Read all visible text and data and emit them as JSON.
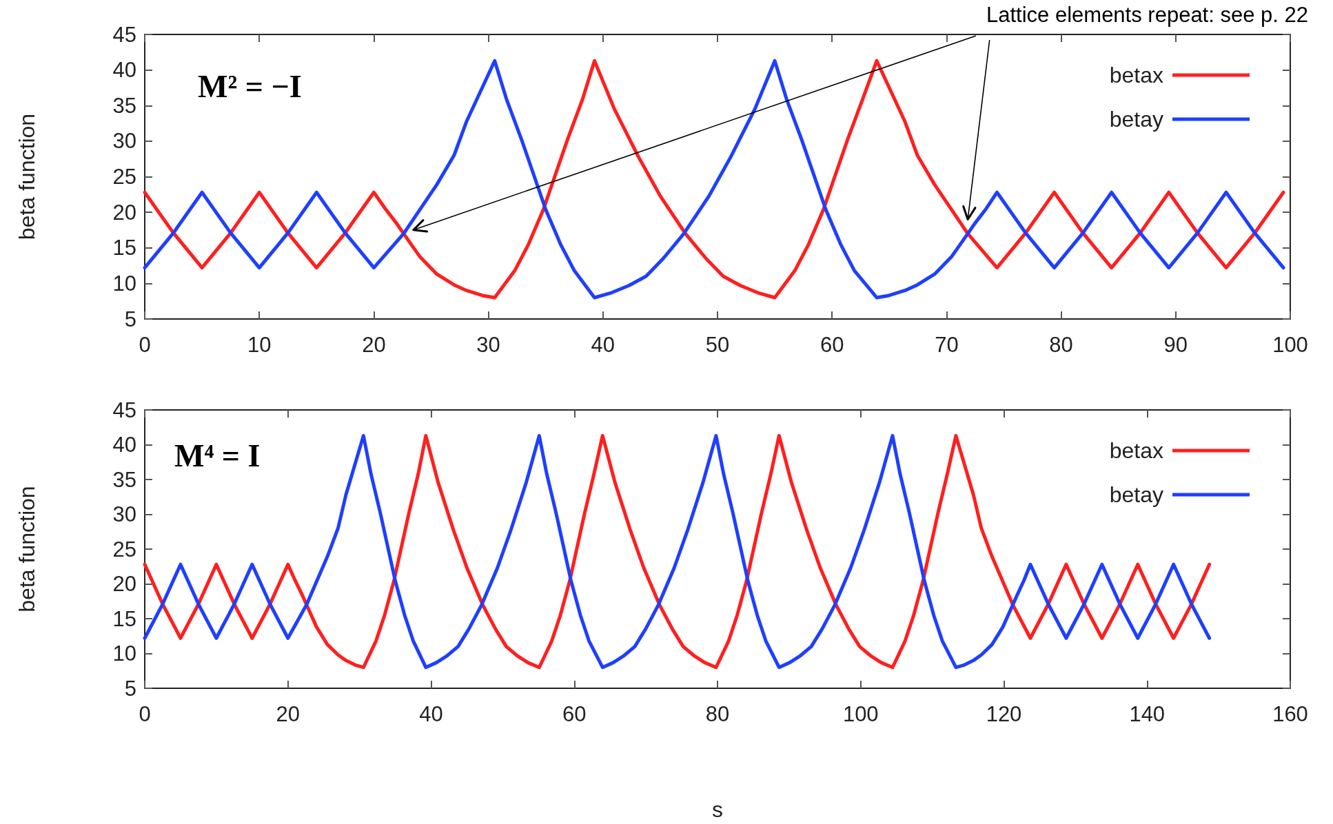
{
  "chart_data": [
    {
      "type": "line",
      "ylabel": "beta function",
      "xlim": [
        0,
        100
      ],
      "ylim": [
        5,
        45
      ],
      "xticks": [
        0,
        10,
        20,
        30,
        40,
        50,
        60,
        70,
        80,
        90,
        100
      ],
      "yticks": [
        5,
        10,
        15,
        20,
        25,
        30,
        35,
        40,
        45
      ],
      "legend": "top right",
      "annotations": [
        "M² = −I",
        "Lattice elements repeat: see p. 22"
      ],
      "series": [
        {
          "name": "betax",
          "color": "#ff1f1f",
          "x": [
            0,
            2.5,
            5,
            7.5,
            10,
            12.5,
            15,
            17.5,
            20,
            21,
            22,
            22.6,
            24,
            25.5,
            27,
            28.1,
            29.5,
            30.55,
            32.3,
            33.5,
            34.8,
            36.9,
            38.2,
            39.26,
            41,
            43.1,
            45,
            47.2,
            49,
            50.5,
            52,
            53.5,
            55,
            56.75,
            57.95,
            59.25,
            61.35,
            62.65,
            63.9,
            66.35,
            67.45,
            68.95,
            71.85,
            74.4,
            76.9,
            79.4,
            81.9,
            84.4,
            86.9,
            89.4,
            91.9,
            94.4,
            96.9,
            99.4
          ],
          "values": [
            22.8,
            17.1,
            12.2,
            17.1,
            22.8,
            17.1,
            12.2,
            17.1,
            22.8,
            20.5,
            18.4,
            17.0,
            13.8,
            11.3,
            9.8,
            9.0,
            8.3,
            8.0,
            11.8,
            15.5,
            20.4,
            30.2,
            35.8,
            41.3,
            34.5,
            27.8,
            22.3,
            17.0,
            13.5,
            11.0,
            9.7,
            8.7,
            8.0,
            11.8,
            15.5,
            20.4,
            30.2,
            35.8,
            41.3,
            32.8,
            28,
            23.9,
            17.0,
            12.2,
            17.1,
            22.8,
            17.1,
            12.2,
            17.1,
            22.8,
            17.1,
            12.2,
            17.1,
            22.8
          ]
        },
        {
          "name": "betay",
          "color": "#1f3fff",
          "x": [
            0,
            2.5,
            5,
            7.5,
            10,
            12.5,
            15,
            17.5,
            20,
            22.6,
            25.5,
            27,
            28.1,
            30.55,
            31.6,
            32.9,
            35.0,
            36.3,
            37.5,
            39.26,
            40.76,
            42.26,
            43.76,
            45.26,
            47.06,
            49.26,
            51.16,
            53.26,
            55.0,
            56.05,
            57.35,
            59.45,
            60.75,
            61.95,
            63.9,
            64.95,
            66.35,
            67.45,
            68.95,
            70.45,
            71.85,
            72.45,
            73.45,
            74.4,
            76.9,
            79.4,
            81.9,
            84.4,
            86.9,
            89.4,
            91.9,
            94.4,
            96.9,
            99.4
          ],
          "values": [
            12.2,
            17.1,
            22.8,
            17.1,
            12.2,
            17.1,
            22.8,
            17.1,
            12.2,
            17.0,
            23.9,
            28,
            32.8,
            41.3,
            35.8,
            30.2,
            20.4,
            15.5,
            11.8,
            8.0,
            8.7,
            9.7,
            11.0,
            13.5,
            17.0,
            22.3,
            27.8,
            34.5,
            41.3,
            35.8,
            30.2,
            20.4,
            15.5,
            11.8,
            8.0,
            8.3,
            9.0,
            9.8,
            11.3,
            13.8,
            17.0,
            18.4,
            20.5,
            22.8,
            17.1,
            12.2,
            17.1,
            22.8,
            17.1,
            12.2,
            17.1,
            22.8,
            17.1,
            12.2
          ]
        }
      ]
    },
    {
      "type": "line",
      "xlabel": "s",
      "ylabel": "beta function",
      "xlim": [
        0,
        160
      ],
      "ylim": [
        5,
        45
      ],
      "xticks": [
        0,
        20,
        40,
        60,
        80,
        100,
        120,
        140,
        160
      ],
      "yticks": [
        5,
        10,
        15,
        20,
        25,
        30,
        35,
        40,
        45
      ],
      "legend": "top right",
      "annotations": [
        "M⁴ = I"
      ],
      "series": [
        {
          "name": "betax",
          "color": "#ff1f1f",
          "x": [
            0,
            2.5,
            5,
            7.5,
            10,
            12.5,
            15,
            17.5,
            20,
            21,
            22,
            22.6,
            24,
            25.5,
            27,
            28.1,
            29.5,
            30.55,
            32.3,
            33.5,
            34.8,
            36.9,
            38.2,
            39.26,
            41,
            43.1,
            45,
            47.2,
            49,
            50.5,
            52,
            53.5,
            55.1,
            56.85,
            58.05,
            59.35,
            61.45,
            62.75,
            63.95,
            65.7,
            67.8,
            69.7,
            71.9,
            73.7,
            75.2,
            76.7,
            78.2,
            79.8,
            81.55,
            82.75,
            84.05,
            86.15,
            87.45,
            88.6,
            90.35,
            92.45,
            94.35,
            96.55,
            98.35,
            99.85,
            101.35,
            102.85,
            104.45,
            106.2,
            107.4,
            108.7,
            110.8,
            112.1,
            113.3,
            115.75,
            116.85,
            118.35,
            121.25,
            123.7,
            126.2,
            128.7,
            131.2,
            133.7,
            136.2,
            138.7,
            141.2,
            143.7,
            146.2,
            148.7
          ],
          "values": [
            22.8,
            17.1,
            12.2,
            17.1,
            22.8,
            17.1,
            12.2,
            17.1,
            22.8,
            20.5,
            18.4,
            17.0,
            13.8,
            11.3,
            9.8,
            9.0,
            8.3,
            8.0,
            11.8,
            15.5,
            20.4,
            30.2,
            35.8,
            41.3,
            34.5,
            27.8,
            22.3,
            17.0,
            13.5,
            11.0,
            9.7,
            8.7,
            8.0,
            11.8,
            15.5,
            20.4,
            30.2,
            35.8,
            41.3,
            34.5,
            27.8,
            22.3,
            17.0,
            13.5,
            11.0,
            9.7,
            8.7,
            8.0,
            11.8,
            15.5,
            20.4,
            30.2,
            35.8,
            41.3,
            34.5,
            27.8,
            22.3,
            17.0,
            13.5,
            11.0,
            9.7,
            8.7,
            8.0,
            11.8,
            15.5,
            20.4,
            30.2,
            35.8,
            41.3,
            32.8,
            28,
            23.9,
            17.0,
            12.2,
            17.1,
            22.8,
            17.1,
            12.2,
            17.1,
            22.8,
            17.1,
            12.2,
            17.1,
            22.8
          ]
        },
        {
          "name": "betay",
          "color": "#1f3fff",
          "x": [
            0,
            2.5,
            5,
            7.5,
            10,
            12.5,
            15,
            17.5,
            20,
            22.6,
            25.5,
            27,
            28.1,
            30.55,
            31.6,
            32.9,
            35.0,
            36.3,
            37.5,
            39.26,
            40.76,
            42.26,
            43.76,
            45.26,
            47.06,
            49.26,
            51.16,
            53.26,
            55.1,
            56.15,
            57.45,
            59.55,
            60.85,
            62.05,
            63.95,
            65.45,
            66.95,
            68.45,
            69.95,
            71.75,
            73.95,
            75.85,
            77.95,
            79.8,
            80.85,
            82.15,
            84.25,
            85.55,
            86.75,
            88.6,
            90.1,
            91.6,
            93.1,
            94.6,
            96.4,
            98.6,
            100.5,
            102.6,
            104.45,
            105.5,
            106.8,
            108.9,
            110.2,
            111.4,
            113.3,
            114.35,
            115.75,
            116.85,
            118.35,
            119.85,
            121.25,
            121.85,
            122.8,
            123.7,
            126.2,
            128.7,
            131.2,
            133.7,
            136.2,
            138.7,
            141.2,
            143.7,
            146.2,
            148.7
          ],
          "values": [
            12.2,
            17.1,
            22.8,
            17.1,
            12.2,
            17.1,
            22.8,
            17.1,
            12.2,
            17.0,
            23.9,
            28,
            32.8,
            41.3,
            35.8,
            30.2,
            20.4,
            15.5,
            11.8,
            8.0,
            8.7,
            9.7,
            11.0,
            13.5,
            17.0,
            22.3,
            27.8,
            34.5,
            41.3,
            35.8,
            30.2,
            20.4,
            15.5,
            11.8,
            8.0,
            8.7,
            9.7,
            11.0,
            13.5,
            17.0,
            22.3,
            27.8,
            34.5,
            41.3,
            35.8,
            30.2,
            20.4,
            15.5,
            11.8,
            8.0,
            8.7,
            9.7,
            11.0,
            13.5,
            17.0,
            22.3,
            27.8,
            34.5,
            41.3,
            35.8,
            30.2,
            20.4,
            15.5,
            11.8,
            8.0,
            8.3,
            9.0,
            9.8,
            11.3,
            13.8,
            17.0,
            18.4,
            20.5,
            22.8,
            17.1,
            12.2,
            17.1,
            22.8,
            17.1,
            12.2,
            17.1,
            22.8,
            17.1,
            12.2
          ]
        }
      ]
    }
  ]
}
